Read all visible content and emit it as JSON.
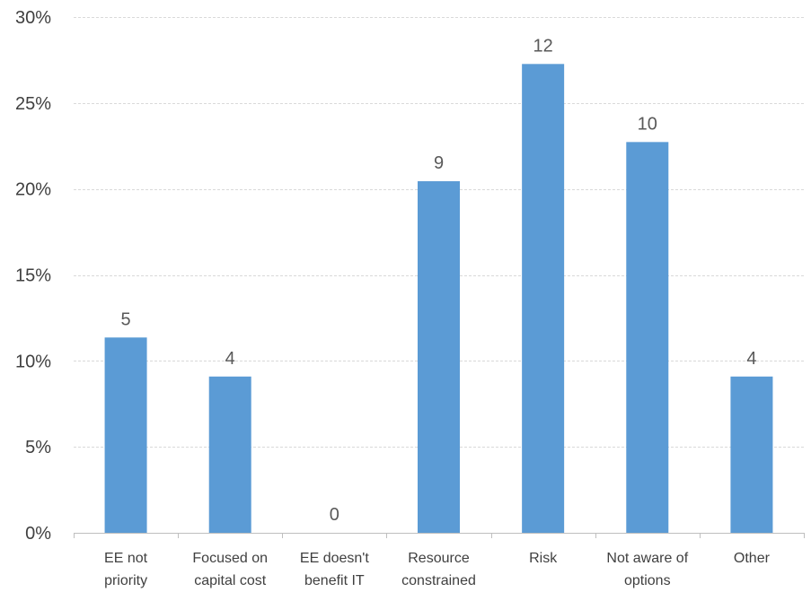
{
  "chart_data": {
    "type": "bar",
    "categories": [
      [
        "EE not",
        "priority"
      ],
      [
        "Focused on",
        "capital cost"
      ],
      [
        "EE doesn't",
        "benefit IT"
      ],
      [
        "Resource",
        "constrained"
      ],
      [
        "Risk"
      ],
      [
        "Not aware of",
        "options"
      ],
      [
        "Other"
      ]
    ],
    "values": [
      11.36,
      9.09,
      0,
      20.45,
      27.27,
      22.73,
      9.09
    ],
    "data_labels": [
      "5",
      "4",
      "0",
      "9",
      "12",
      "10",
      "4"
    ],
    "ylim": [
      0,
      30
    ],
    "yticks": [
      0,
      5,
      10,
      15,
      20,
      25,
      30
    ],
    "ytick_labels": [
      "0%",
      "5%",
      "10%",
      "15%",
      "20%",
      "25%",
      "30%"
    ],
    "grid": true,
    "bar_color": "#5b9bd5",
    "title": "",
    "xlabel": "",
    "ylabel": ""
  }
}
